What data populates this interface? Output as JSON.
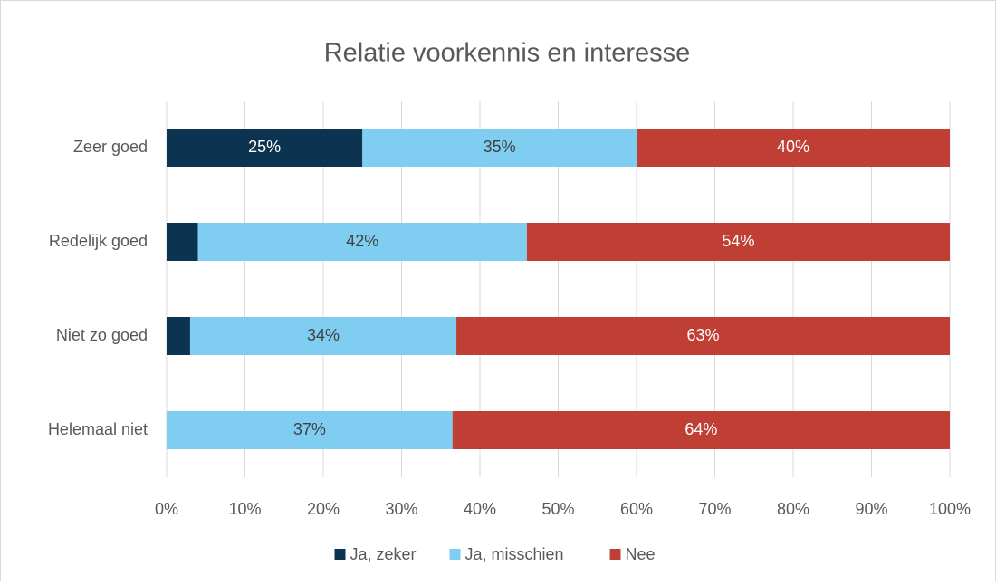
{
  "chart_data": {
    "type": "stacked-barh",
    "title": "Relatie voorkennis en interesse",
    "categories": [
      "Zeer goed",
      "Redelijk goed",
      "Niet zo goed",
      "Helemaal niet"
    ],
    "series": [
      {
        "name": "Ja, zeker",
        "color": "#0c3350",
        "values": [
          25,
          4,
          3,
          0
        ],
        "value_labels": [
          "25%",
          null,
          null,
          null
        ]
      },
      {
        "name": "Ja, misschien",
        "color": "#7fcef1",
        "values": [
          35,
          42,
          34,
          36.5
        ],
        "value_labels": [
          "35%",
          "42%",
          "34%",
          "37%"
        ]
      },
      {
        "name": "Nee",
        "color": "#bf3f34",
        "values": [
          40,
          54,
          63,
          63.5
        ],
        "value_labels": [
          "40%",
          "54%",
          "63%",
          "64%"
        ]
      }
    ],
    "xlim": [
      0,
      100
    ],
    "xticks": [
      {
        "value": 0,
        "label": "0%"
      },
      {
        "value": 10,
        "label": "10%"
      },
      {
        "value": 20,
        "label": "20%"
      },
      {
        "value": 30,
        "label": "30%"
      },
      {
        "value": 40,
        "label": "40%"
      },
      {
        "value": 50,
        "label": "50%"
      },
      {
        "value": 60,
        "label": "60%"
      },
      {
        "value": 70,
        "label": "70%"
      },
      {
        "value": 80,
        "label": "80%"
      },
      {
        "value": 90,
        "label": "90%"
      },
      {
        "value": 100,
        "label": "100%"
      }
    ],
    "grid": true,
    "legend": "bottom"
  }
}
